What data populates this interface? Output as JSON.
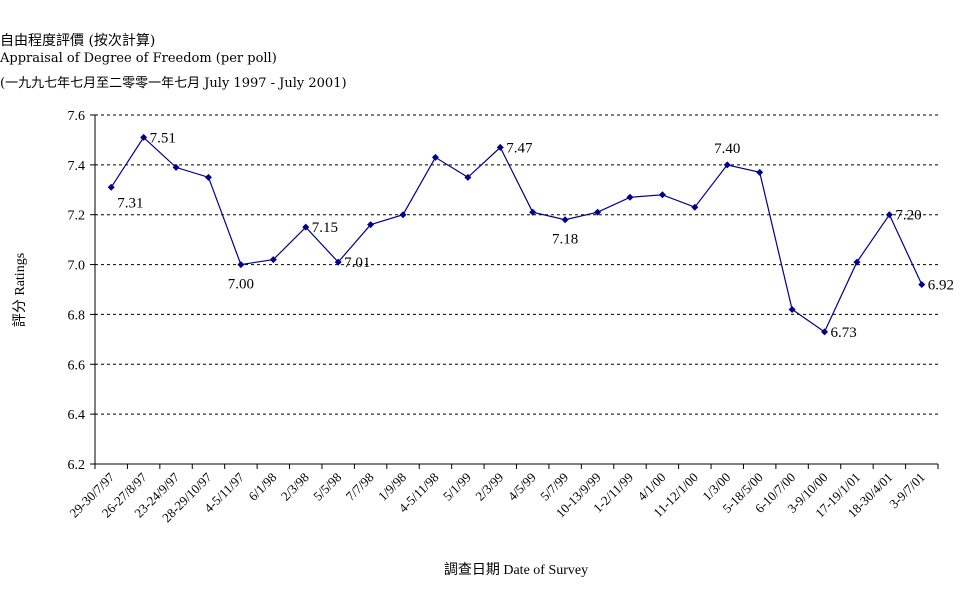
{
  "chart_data": {
    "type": "line",
    "title": "自由程度評價 (按次計算)",
    "subtitle": "Appraisal of Degree of Freedom  (per poll)",
    "subtitle2": "(一九九七年七月至二零零一年七月 July 1997 - July 2001)",
    "xlabel": "調查日期 Date of Survey",
    "ylabel": "評分 Ratings",
    "ylim": [
      6.2,
      7.6
    ],
    "yticks": [
      "6.2",
      "6.4",
      "6.6",
      "6.8",
      "7.0",
      "7.2",
      "7.4",
      "7.6"
    ],
    "grid": true,
    "categories": [
      "29-30/7/97",
      "26-27/8/97",
      "23-24/9/97",
      "28-29/10/97",
      "4-5/11/97",
      "6/1/98",
      "2/3/98",
      "5/5/98",
      "7/7/98",
      "1/9/98",
      "4-5/11/98",
      "5/1/99",
      "2/3/99",
      "4/5/99",
      "5/7/99",
      "10-13/9/99",
      "1-2/11/99",
      "4/1/00",
      "11-12/1/00",
      "1/3/00",
      "5-18/5/00",
      "6-10/7/00",
      "3-9/10/00",
      "17-19/1/01",
      "18-30/4/01",
      "3-9/7/01"
    ],
    "series": [
      {
        "name": "",
        "values": [
          7.31,
          7.51,
          7.39,
          7.35,
          7.0,
          7.02,
          7.15,
          7.01,
          7.16,
          7.2,
          7.43,
          7.35,
          7.47,
          7.21,
          7.18,
          7.21,
          7.27,
          7.28,
          7.23,
          7.4,
          7.37,
          6.82,
          6.73,
          7.01,
          7.2,
          6.92
        ]
      }
    ],
    "data_labels": [
      {
        "index": 0,
        "text": "7.31",
        "pos": "below-right"
      },
      {
        "index": 1,
        "text": "7.51",
        "pos": "right"
      },
      {
        "index": 4,
        "text": "7.00",
        "pos": "below"
      },
      {
        "index": 6,
        "text": "7.15",
        "pos": "right"
      },
      {
        "index": 7,
        "text": "7.01",
        "pos": "right"
      },
      {
        "index": 12,
        "text": "7.47",
        "pos": "right"
      },
      {
        "index": 14,
        "text": "7.18",
        "pos": "below"
      },
      {
        "index": 19,
        "text": "7.40",
        "pos": "above"
      },
      {
        "index": 22,
        "text": "6.73",
        "pos": "right"
      },
      {
        "index": 24,
        "text": "7.20",
        "pos": "right"
      },
      {
        "index": 25,
        "text": "6.92",
        "pos": "right"
      }
    ],
    "line_color": "#00008b",
    "grid_color": "#000000"
  }
}
